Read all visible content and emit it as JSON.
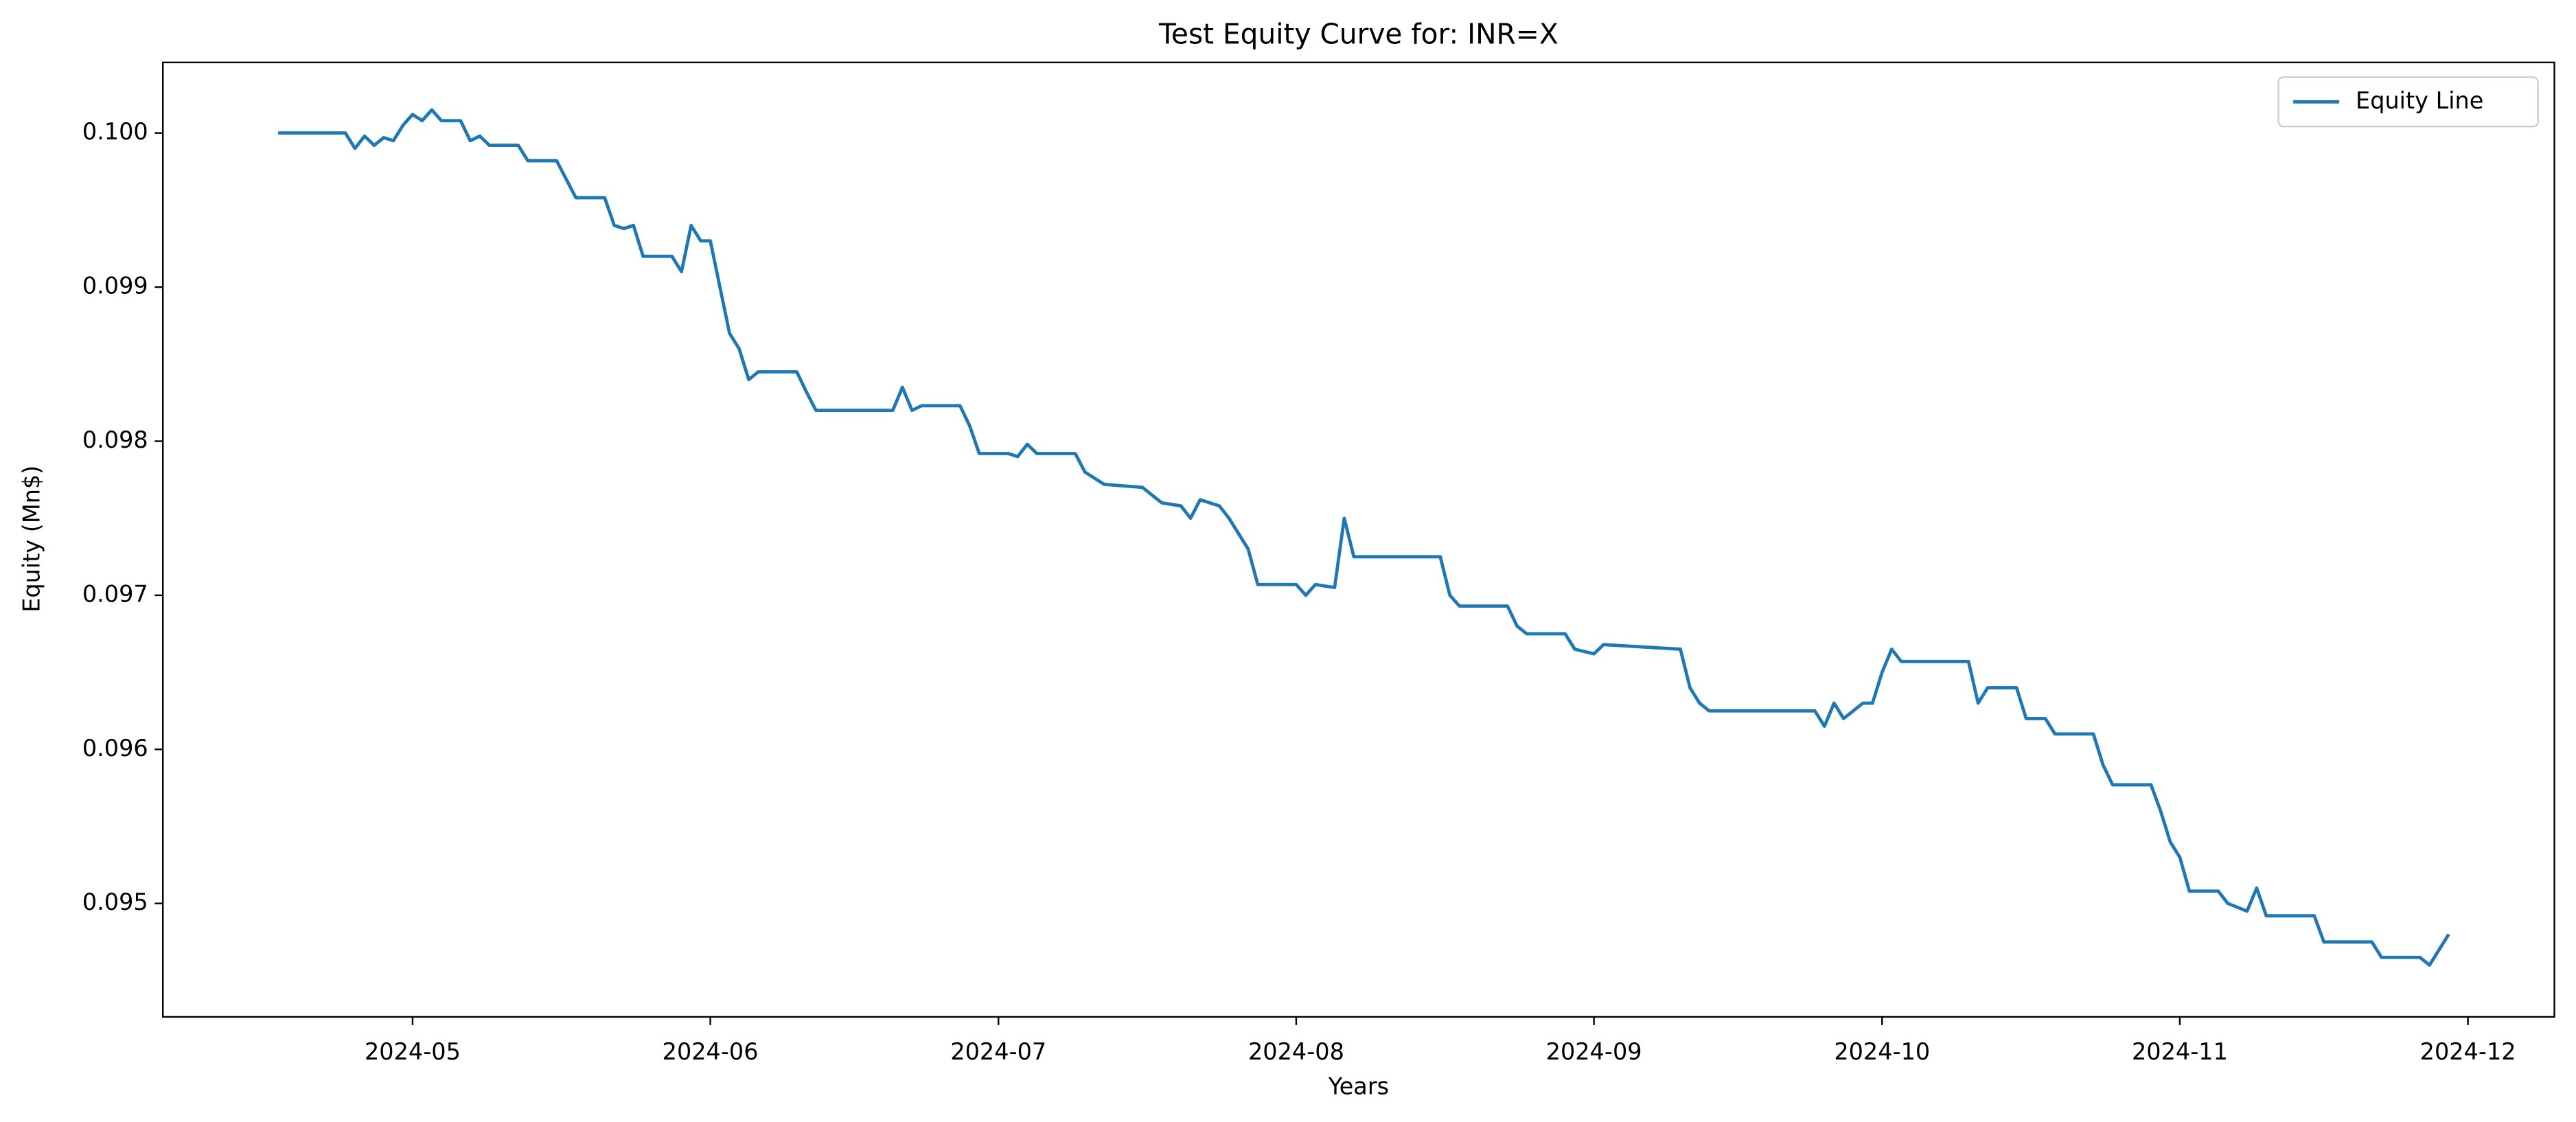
{
  "chart_data": {
    "type": "line",
    "title": "Test Equity Curve for: INR=X",
    "xlabel": "Years",
    "ylabel": "Equity (Mn$)",
    "x": [
      "2024-04-17",
      "2024-04-24",
      "2024-04-25",
      "2024-04-26",
      "2024-04-27",
      "2024-04-28",
      "2024-04-29",
      "2024-04-30",
      "2024-05-01",
      "2024-05-02",
      "2024-05-03",
      "2024-05-04",
      "2024-05-06",
      "2024-05-07",
      "2024-05-08",
      "2024-05-09",
      "2024-05-12",
      "2024-05-13",
      "2024-05-16",
      "2024-05-17",
      "2024-05-18",
      "2024-05-21",
      "2024-05-22",
      "2024-05-23",
      "2024-05-24",
      "2024-05-25",
      "2024-05-28",
      "2024-05-29",
      "2024-05-30",
      "2024-05-31",
      "2024-06-01",
      "2024-06-03",
      "2024-06-04",
      "2024-06-05",
      "2024-06-06",
      "2024-06-10",
      "2024-06-11",
      "2024-06-12",
      "2024-06-20",
      "2024-06-21",
      "2024-06-22",
      "2024-06-23",
      "2024-06-27",
      "2024-06-28",
      "2024-06-29",
      "2024-07-02",
      "2024-07-03",
      "2024-07-04",
      "2024-07-05",
      "2024-07-09",
      "2024-07-10",
      "2024-07-12",
      "2024-07-16",
      "2024-07-18",
      "2024-07-20",
      "2024-07-21",
      "2024-07-22",
      "2024-07-24",
      "2024-07-25",
      "2024-07-27",
      "2024-07-28",
      "2024-08-01",
      "2024-08-02",
      "2024-08-03",
      "2024-08-05",
      "2024-08-06",
      "2024-08-07",
      "2024-08-16",
      "2024-08-17",
      "2024-08-18",
      "2024-08-23",
      "2024-08-24",
      "2024-08-25",
      "2024-08-29",
      "2024-08-30",
      "2024-09-01",
      "2024-09-02",
      "2024-09-10",
      "2024-09-11",
      "2024-09-12",
      "2024-09-13",
      "2024-09-24",
      "2024-09-25",
      "2024-09-26",
      "2024-09-27",
      "2024-09-29",
      "2024-09-30",
      "2024-10-01",
      "2024-10-02",
      "2024-10-03",
      "2024-10-10",
      "2024-10-11",
      "2024-10-12",
      "2024-10-15",
      "2024-10-16",
      "2024-10-18",
      "2024-10-19",
      "2024-10-23",
      "2024-10-24",
      "2024-10-25",
      "2024-10-29",
      "2024-10-30",
      "2024-10-31",
      "2024-11-01",
      "2024-11-02",
      "2024-11-05",
      "2024-11-06",
      "2024-11-08",
      "2024-11-09",
      "2024-11-10",
      "2024-11-15",
      "2024-11-16",
      "2024-11-21",
      "2024-11-22",
      "2024-11-26",
      "2024-11-27",
      "2024-11-28",
      "2024-11-29"
    ],
    "series": [
      {
        "name": "Equity Line",
        "color": "#1f77b4",
        "values": [
          0.1,
          0.1,
          0.0999,
          0.09998,
          0.09992,
          0.09997,
          0.09995,
          0.10005,
          0.10012,
          0.10008,
          0.10015,
          0.10008,
          0.10008,
          0.09995,
          0.09998,
          0.09992,
          0.09992,
          0.09982,
          0.09982,
          0.0997,
          0.09958,
          0.09958,
          0.0994,
          0.09938,
          0.0994,
          0.0992,
          0.0992,
          0.0991,
          0.0994,
          0.0993,
          0.0993,
          0.0987,
          0.0986,
          0.0984,
          0.09845,
          0.09845,
          0.09832,
          0.0982,
          0.0982,
          0.09835,
          0.0982,
          0.09823,
          0.09823,
          0.0981,
          0.09792,
          0.09792,
          0.0979,
          0.09798,
          0.09792,
          0.09792,
          0.0978,
          0.09772,
          0.0977,
          0.0976,
          0.09758,
          0.0975,
          0.09762,
          0.09758,
          0.0975,
          0.0973,
          0.09707,
          0.09707,
          0.097,
          0.09707,
          0.09705,
          0.0975,
          0.09725,
          0.09725,
          0.097,
          0.09693,
          0.09693,
          0.0968,
          0.09675,
          0.09675,
          0.09665,
          0.09662,
          0.09668,
          0.09665,
          0.0964,
          0.0963,
          0.09625,
          0.09625,
          0.09615,
          0.0963,
          0.0962,
          0.0963,
          0.0963,
          0.0965,
          0.09665,
          0.09657,
          0.09657,
          0.0963,
          0.0964,
          0.0964,
          0.0962,
          0.0962,
          0.0961,
          0.0961,
          0.0959,
          0.09577,
          0.09577,
          0.0956,
          0.0954,
          0.0953,
          0.09508,
          0.09508,
          0.095,
          0.09495,
          0.0951,
          0.09492,
          0.09492,
          0.09475,
          0.09475,
          0.09465,
          0.09465,
          0.0946,
          0.0947,
          0.0948
        ]
      }
    ],
    "xlim": [
      "2024-04-05",
      "2024-12-10"
    ],
    "xticks": [
      {
        "value": "2024-05-01",
        "label": "2024-05"
      },
      {
        "value": "2024-06-01",
        "label": "2024-06"
      },
      {
        "value": "2024-07-01",
        "label": "2024-07"
      },
      {
        "value": "2024-08-01",
        "label": "2024-08"
      },
      {
        "value": "2024-09-01",
        "label": "2024-09"
      },
      {
        "value": "2024-10-01",
        "label": "2024-10"
      },
      {
        "value": "2024-11-01",
        "label": "2024-11"
      },
      {
        "value": "2024-12-01",
        "label": "2024-12"
      }
    ],
    "ylim": [
      0.094264,
      0.100458
    ],
    "yticks": [
      0.095,
      0.096,
      0.097,
      0.098,
      0.099,
      {
        "value": 0.1,
        "label": "0.100"
      }
    ],
    "grid": false,
    "legend": "upper-right"
  }
}
